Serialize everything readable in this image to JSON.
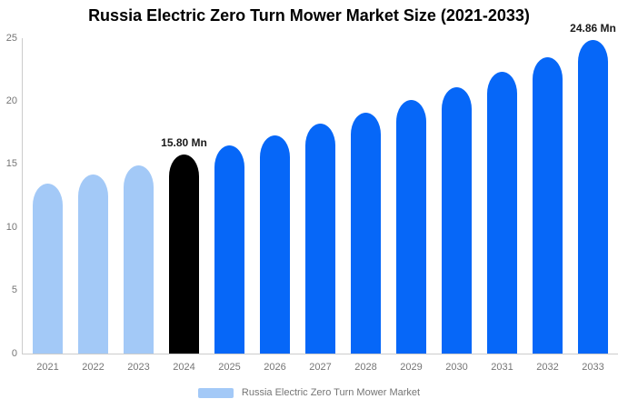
{
  "chart_data": {
    "type": "bar",
    "title": "Russia Electric Zero Turn Mower Market Size (2021-2033)",
    "categories": [
      "2021",
      "2022",
      "2023",
      "2024",
      "2025",
      "2026",
      "2027",
      "2028",
      "2029",
      "2030",
      "2031",
      "2032",
      "2033"
    ],
    "values": [
      13.5,
      14.2,
      14.9,
      15.8,
      16.5,
      17.3,
      18.2,
      19.1,
      20.1,
      21.1,
      22.3,
      23.5,
      24.86
    ],
    "unit": "Mn",
    "ylim": [
      0,
      25
    ],
    "yticks": [
      0,
      5,
      10,
      15,
      20,
      25
    ],
    "grid": false,
    "legend_position": "bottom",
    "legend_label": "Russia Electric Zero Turn Mower Market",
    "bar_labels": [
      {
        "category": "2024",
        "text": "15.80 Mn"
      },
      {
        "category": "2033",
        "text": "24.86 Mn"
      }
    ],
    "colors": {
      "historical": "#A3C9F7",
      "base_year": "#000000",
      "forecast": "#0667F8"
    },
    "point_colors": [
      "historical",
      "historical",
      "historical",
      "base_year",
      "forecast",
      "forecast",
      "forecast",
      "forecast",
      "forecast",
      "forecast",
      "forecast",
      "forecast",
      "forecast"
    ],
    "axis_line_color": "#cccccc"
  }
}
